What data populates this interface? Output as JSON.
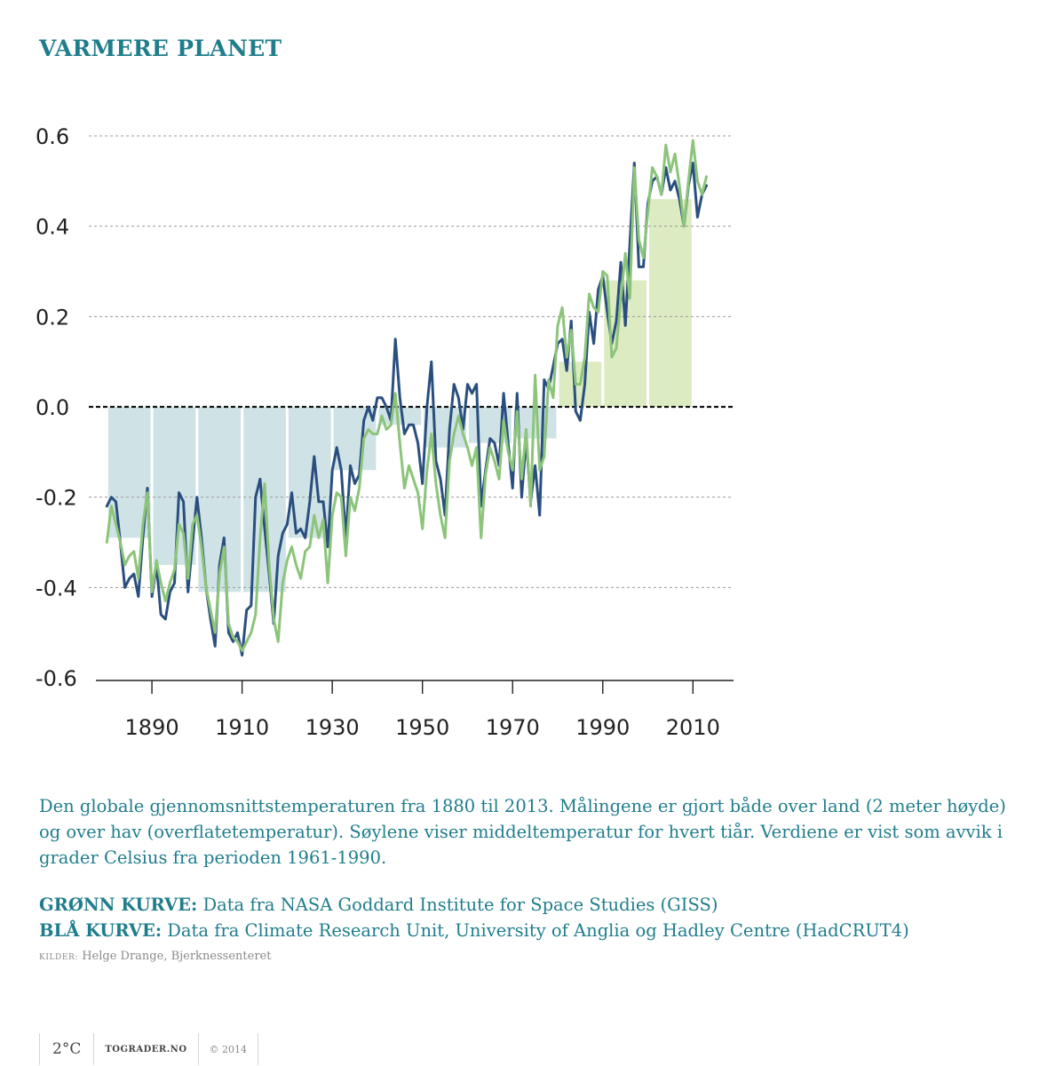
{
  "title": "VARMERE PLANET",
  "description": "Den globale gjennomsnittstemperaturen fra 1880 til 2013. Målingene er gjort både over land (2 meter høyde) og over hav (overflatetemperatur). Søylene viser middeltemperatur for hvert tiår. Verdiene er vist som avvik i grader Celsius fra perioden 1961-1990.",
  "credits": {
    "green_label": "GRØNN KURVE:",
    "green_text": " Data fra NASA Goddard Institute for Space Studies (GISS)",
    "blue_label": "BLÅ KURVE:",
    "blue_text": " Data fra Climate Research Unit, University of Anglia og Hadley Centre (HadCRUT4)"
  },
  "sources": {
    "label": "Kilder:",
    "text": " Helge Drange, Bjerknessenteret"
  },
  "footer": {
    "logo": "2°C",
    "site": "TOGRADER.NO",
    "copyright": "© 2014"
  },
  "colors": {
    "accent": "#1f7d8c",
    "blue_line": "#2a4f7f",
    "green_line": "#8cc47a",
    "neg_bar": "#cfe3e6",
    "pos_bar": "#dcebc2",
    "grid": "#999999"
  },
  "chart_data": {
    "type": "line",
    "title": "VARMERE PLANET",
    "xlabel": "",
    "ylabel": "",
    "xlim": [
      1876,
      2019
    ],
    "ylim": [
      -0.6,
      0.6
    ],
    "xticks": [
      1890,
      1910,
      1930,
      1950,
      1970,
      1990,
      2010
    ],
    "yticks": [
      0.6,
      0.4,
      0.2,
      0.0,
      -0.2,
      -0.4,
      -0.6
    ],
    "ytick_labels": [
      "0.6",
      "0.4",
      "0.2",
      "0.0",
      "-0.2",
      "-0.4",
      "-0.6"
    ],
    "x_start": 1880,
    "decade_bars": {
      "name": "Tiårsmiddel",
      "decades": [
        1880,
        1890,
        1900,
        1910,
        1920,
        1930,
        1940,
        1950,
        1960,
        1970,
        1980,
        1990,
        2000
      ],
      "values": [
        -0.29,
        -0.35,
        -0.41,
        -0.41,
        -0.29,
        -0.14,
        -0.04,
        -0.09,
        -0.08,
        -0.07,
        0.1,
        0.28,
        0.46
      ]
    },
    "series": [
      {
        "name": "BLÅ KURVE (HadCRUT4)",
        "values": [
          -0.22,
          -0.2,
          -0.21,
          -0.3,
          -0.4,
          -0.38,
          -0.37,
          -0.42,
          -0.29,
          -0.18,
          -0.42,
          -0.35,
          -0.46,
          -0.47,
          -0.41,
          -0.39,
          -0.19,
          -0.21,
          -0.41,
          -0.3,
          -0.2,
          -0.29,
          -0.4,
          -0.47,
          -0.53,
          -0.35,
          -0.29,
          -0.5,
          -0.52,
          -0.5,
          -0.55,
          -0.45,
          -0.44,
          -0.2,
          -0.16,
          -0.27,
          -0.37,
          -0.48,
          -0.33,
          -0.28,
          -0.26,
          -0.19,
          -0.28,
          -0.27,
          -0.29,
          -0.21,
          -0.11,
          -0.21,
          -0.21,
          -0.31,
          -0.14,
          -0.09,
          -0.14,
          -0.29,
          -0.13,
          -0.17,
          -0.15,
          -0.03,
          0.0,
          -0.03,
          0.02,
          0.02,
          0.0,
          -0.03,
          0.15,
          0.02,
          -0.06,
          -0.04,
          -0.04,
          -0.08,
          -0.17,
          0.0,
          0.1,
          -0.12,
          -0.16,
          -0.24,
          -0.05,
          0.05,
          0.02,
          -0.05,
          0.05,
          0.03,
          0.05,
          -0.22,
          -0.14,
          -0.07,
          -0.08,
          -0.13,
          0.03,
          -0.08,
          -0.18,
          0.03,
          -0.2,
          -0.07,
          -0.21,
          -0.13,
          -0.24,
          0.06,
          0.04,
          0.09,
          0.14,
          0.15,
          0.08,
          0.19,
          -0.01,
          -0.03,
          0.05,
          0.21,
          0.14,
          0.26,
          0.29,
          0.21,
          0.14,
          0.19,
          0.32,
          0.18,
          0.36,
          0.54,
          0.31,
          0.31,
          0.45,
          0.5,
          0.51,
          0.47,
          0.53,
          0.48,
          0.5,
          0.46,
          0.4,
          0.49,
          0.54,
          0.42,
          0.47,
          0.49
        ]
      },
      {
        "name": "GRØNN KURVE (NASA GISS)",
        "values": [
          -0.3,
          -0.22,
          -0.26,
          -0.3,
          -0.35,
          -0.33,
          -0.32,
          -0.38,
          -0.26,
          -0.19,
          -0.41,
          -0.34,
          -0.39,
          -0.43,
          -0.39,
          -0.36,
          -0.26,
          -0.28,
          -0.38,
          -0.26,
          -0.24,
          -0.31,
          -0.4,
          -0.45,
          -0.5,
          -0.37,
          -0.31,
          -0.48,
          -0.51,
          -0.52,
          -0.54,
          -0.52,
          -0.5,
          -0.46,
          -0.29,
          -0.17,
          -0.35,
          -0.47,
          -0.52,
          -0.39,
          -0.34,
          -0.31,
          -0.35,
          -0.38,
          -0.32,
          -0.31,
          -0.24,
          -0.29,
          -0.25,
          -0.39,
          -0.24,
          -0.19,
          -0.2,
          -0.33,
          -0.2,
          -0.23,
          -0.18,
          -0.07,
          -0.05,
          -0.06,
          -0.06,
          -0.02,
          -0.05,
          -0.04,
          0.03,
          -0.08,
          -0.18,
          -0.13,
          -0.16,
          -0.19,
          -0.27,
          -0.14,
          -0.06,
          -0.17,
          -0.24,
          -0.29,
          -0.12,
          -0.06,
          -0.02,
          -0.06,
          -0.09,
          -0.13,
          -0.09,
          -0.29,
          -0.15,
          -0.09,
          -0.12,
          -0.16,
          -0.03,
          -0.1,
          -0.14,
          -0.01,
          -0.16,
          -0.05,
          -0.22,
          0.07,
          -0.14,
          -0.11,
          0.06,
          0.02,
          0.18,
          0.22,
          0.11,
          0.17,
          0.05,
          0.05,
          0.11,
          0.25,
          0.22,
          0.21,
          0.3,
          0.29,
          0.11,
          0.13,
          0.24,
          0.34,
          0.24,
          0.53,
          0.37,
          0.33,
          0.43,
          0.53,
          0.51,
          0.47,
          0.58,
          0.52,
          0.56,
          0.49,
          0.4,
          0.5,
          0.59,
          0.5,
          0.47,
          0.51
        ]
      }
    ]
  }
}
